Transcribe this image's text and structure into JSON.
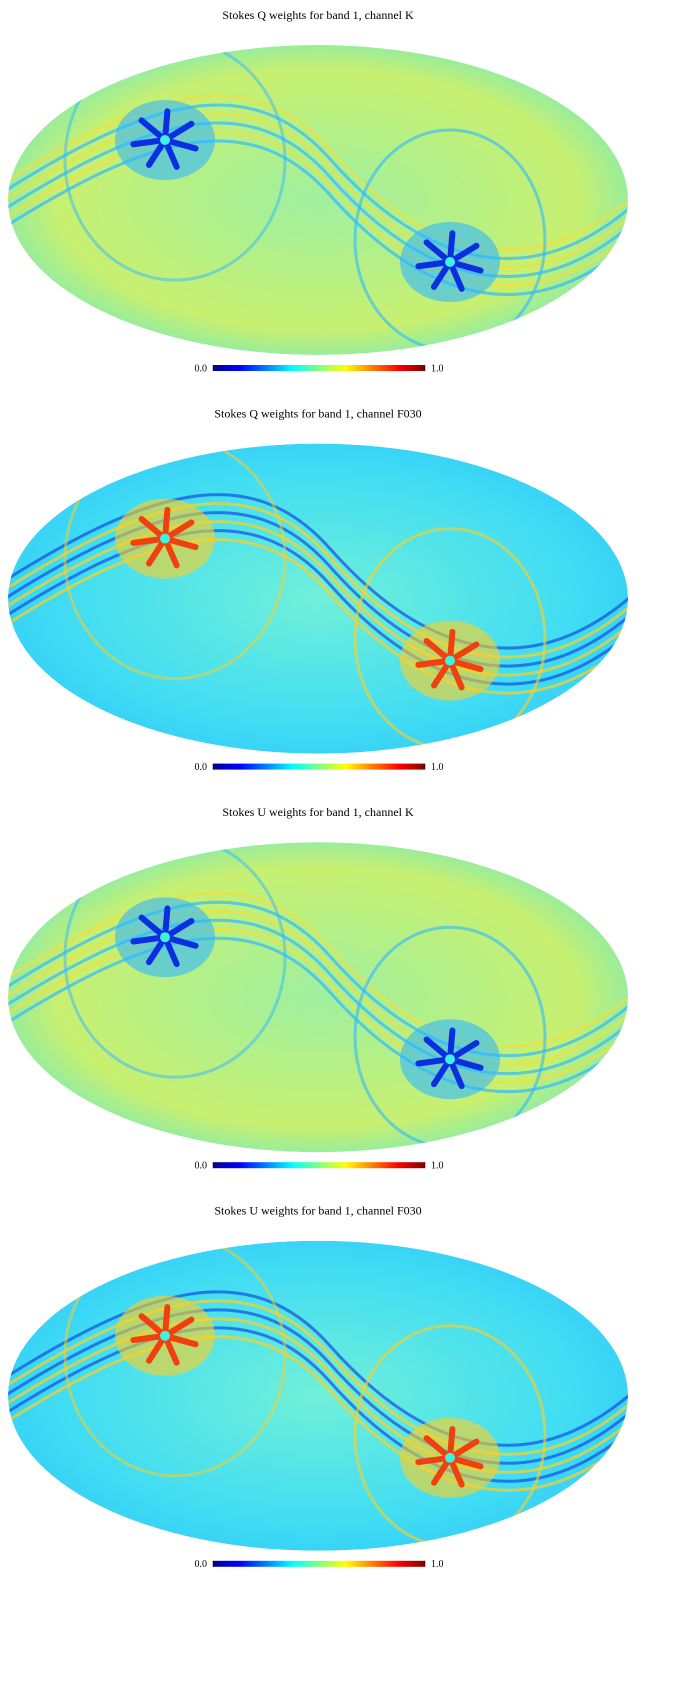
{
  "panels": [
    {
      "title": "Stokes Q weights for band 1, channel K",
      "colorbar": {
        "range": [
          0,
          1
        ],
        "ticks": [
          {
            "value": 0,
            "label": "0.0"
          },
          {
            "value": 1,
            "label": "1.0"
          }
        ]
      }
    },
    {
      "title": "Stokes Q weights for band 1, channel F030",
      "colorbar": {
        "range": [
          0,
          1
        ],
        "ticks": [
          {
            "value": 0,
            "label": "0.0"
          },
          {
            "value": 1,
            "label": "1.0"
          }
        ]
      }
    },
    {
      "title": "Stokes U weights for band 1, channel K",
      "colorbar": {
        "range": [
          0,
          1
        ],
        "ticks": [
          {
            "value": 0,
            "label": "0.0"
          },
          {
            "value": 1,
            "label": "1.0"
          }
        ]
      }
    },
    {
      "title": "Stokes U weights for band 1, channel F030",
      "colorbar": {
        "range": [
          0,
          1
        ],
        "ticks": [
          {
            "value": 0,
            "label": "0.0"
          },
          {
            "value": 1,
            "label": "1.0"
          }
        ]
      }
    }
  ]
}
